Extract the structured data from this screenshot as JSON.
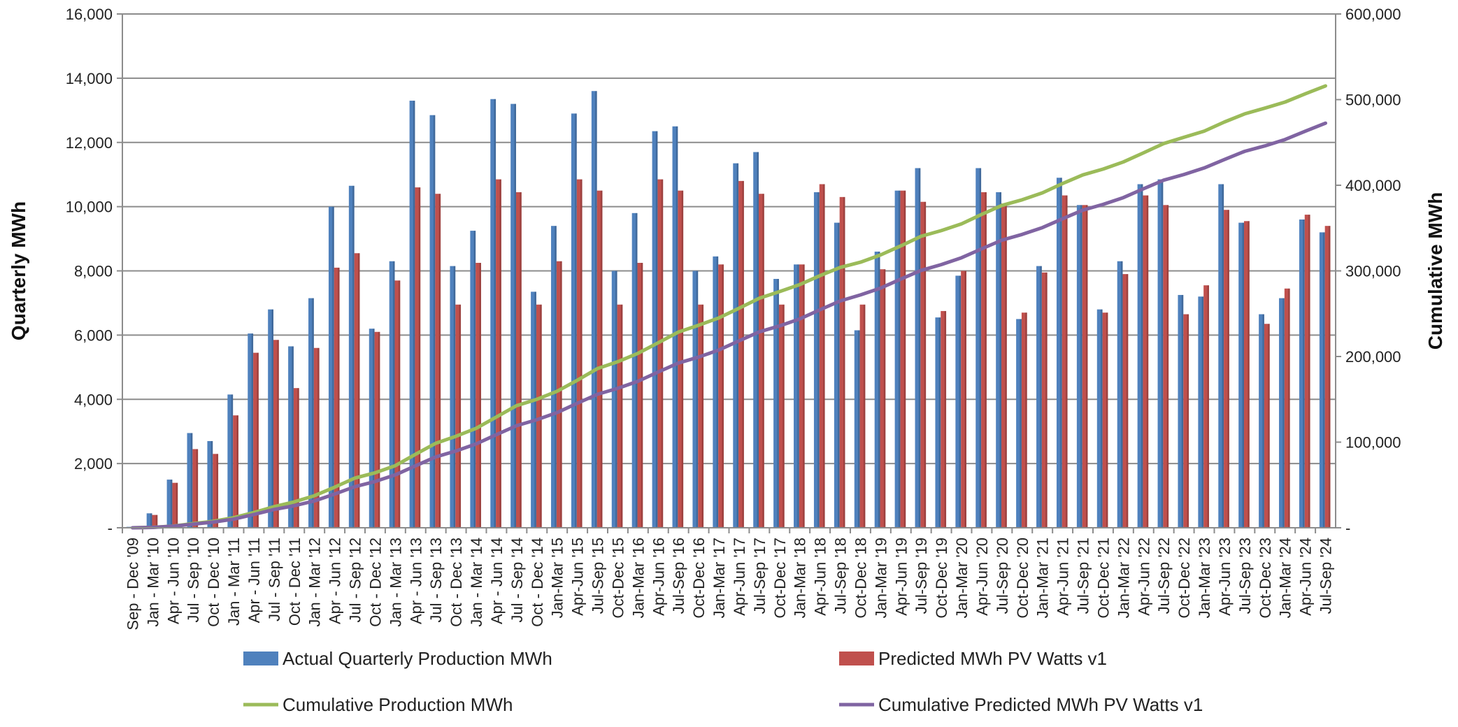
{
  "chart_data": {
    "type": "bar",
    "title": "",
    "ylabel": "Quarterly MWh",
    "y2label": "Cumulative MWh",
    "ylim": [
      0,
      16000
    ],
    "y2lim": [
      0,
      600000
    ],
    "yticks": [
      "-",
      "2,000",
      "4,000",
      "6,000",
      "8,000",
      "10,000",
      "12,000",
      "14,000",
      "16,000"
    ],
    "y2ticks": [
      "-",
      "100,000",
      "200,000",
      "300,000",
      "400,000",
      "500,000",
      "600,000"
    ],
    "grid": true,
    "legend_position": "bottom",
    "categories": [
      "Sep - Dec '09",
      "Jan - Mar '10",
      "Apr - Jun '10",
      "Jul - Sep '10",
      "Oct - Dec '10",
      "Jan - Mar '11",
      "Apr - Jun '11",
      "Jul - Sep '11",
      "Oct - Dec '11",
      "Jan - Mar '12",
      "Apr - Jun '12",
      "Jul - Sep '12",
      "Oct - Dec '12",
      "Jan - Mar '13",
      "Apr - Jun '13",
      "Jul - Sep '13",
      "Oct - Dec '13",
      "Jan - Mar '14",
      "Apr - Jun '14",
      "Jul - Sep '14",
      "Oct - Dec '14",
      "Jan-Mar '15",
      "Apr-Jun '15",
      "Jul-Sep '15",
      "Oct-Dec '15",
      "Jan-Mar '16",
      "Apr-Jun '16",
      "Jul-Sep '16",
      "Oct-Dec '16",
      "Jan-Mar '17",
      "Apr-Jun '17",
      "Jul-Sep '17",
      "Oct-Dec '17",
      "Jan-Mar '18",
      "Apr-Jun '18",
      "Jul-Sep '18",
      "Oct-Dec '18",
      "Jan-Mar '19",
      "Apr-Jun '19",
      "Jul-Sep '19",
      "Oct-Dec '19",
      "Jan-Mar '20",
      "Apr-Jun '20",
      "Jul-Sep '20",
      "Oct-Dec '20",
      "Jan-Mar '21",
      "Apr-Jun '21",
      "Jul-Sep '21",
      "Oct-Dec '21",
      "Jan-Mar '22",
      "Apr-Jun '22",
      "Jul-Sep '22",
      "Oct-Dec '22",
      "Jan-Mar '23",
      "Apr-Jun '23",
      "Jul-Sep '23",
      "Oct-Dec '23",
      "Jan-Mar '24",
      "Apr-Jun '24",
      "Jul-Sep '24"
    ],
    "series": [
      {
        "name": "Actual Quarterly Production MWh",
        "kind": "bar",
        "axis": "left",
        "color": "#4f81bd",
        "values": [
          30,
          450,
          1500,
          2950,
          2700,
          4150,
          6050,
          6800,
          5650,
          7150,
          10000,
          10650,
          6200,
          8300,
          13300,
          12850,
          8150,
          9250,
          13350,
          13200,
          7350,
          9400,
          12900,
          13600,
          8000,
          9800,
          12350,
          12500,
          8000,
          8450,
          11350,
          11700,
          7750,
          8200,
          10450,
          9500,
          6150,
          8600,
          10500,
          11200,
          6550,
          7850,
          11200,
          10450,
          6500,
          8150,
          10900,
          10050,
          6800,
          8300,
          10700,
          10850,
          7250,
          7200,
          10700,
          9500,
          6650,
          7150,
          9600,
          9200
        ]
      },
      {
        "name": "Predicted MWh PV Watts v1",
        "kind": "bar",
        "axis": "left",
        "color": "#c0504d",
        "values": [
          30,
          400,
          1400,
          2450,
          2300,
          3500,
          5450,
          5850,
          4350,
          5600,
          8100,
          8550,
          6100,
          7700,
          10600,
          10400,
          6950,
          8250,
          10850,
          10450,
          6950,
          8300,
          10850,
          10500,
          6950,
          8250,
          10850,
          10500,
          6950,
          8200,
          10800,
          10400,
          6950,
          8200,
          10700,
          10300,
          6950,
          8050,
          10500,
          10150,
          6750,
          8000,
          10450,
          10100,
          6700,
          7950,
          10350,
          10050,
          6700,
          7900,
          10350,
          10050,
          6650,
          7550,
          9900,
          9550,
          6350,
          7450,
          9750,
          9400
        ]
      },
      {
        "name": "Cumulative Production MWh",
        "kind": "line",
        "axis": "right",
        "color": "#9bbb59",
        "values": [
          30,
          480,
          1980,
          4930,
          7630,
          11780,
          17830,
          24630,
          30280,
          37430,
          47430,
          58080,
          64280,
          72580,
          85880,
          98730,
          106880,
          116130,
          129480,
          142680,
          150030,
          159430,
          172330,
          185930,
          193930,
          203730,
          216080,
          228580,
          236580,
          245030,
          256380,
          268080,
          275830,
          284030,
          294480,
          303980,
          310130,
          318730,
          329230,
          340430,
          346980,
          354830,
          366030,
          376480,
          382980,
          391130,
          402030,
          412080,
          418880,
          427180,
          437880,
          448730,
          455980,
          463180,
          473880,
          483380,
          490030,
          497180,
          506780,
          515980
        ]
      },
      {
        "name": "Cumulative Predicted MWh PV Watts v1",
        "kind": "line",
        "axis": "right",
        "color": "#8064a2",
        "values": [
          30,
          430,
          1830,
          4280,
          6580,
          10080,
          15530,
          21380,
          25730,
          31330,
          39430,
          47980,
          54080,
          61780,
          72380,
          82780,
          89730,
          97980,
          108830,
          119280,
          126230,
          134530,
          145380,
          155880,
          162830,
          171080,
          181930,
          192430,
          199380,
          207580,
          218380,
          228780,
          235730,
          243930,
          254630,
          264930,
          271880,
          279930,
          290430,
          300580,
          307330,
          315330,
          325780,
          335880,
          342580,
          350530,
          360880,
          370930,
          377630,
          385530,
          395880,
          405930,
          412580,
          420130,
          430030,
          439580,
          445930,
          453380,
          463130,
          472530
        ]
      }
    ]
  }
}
